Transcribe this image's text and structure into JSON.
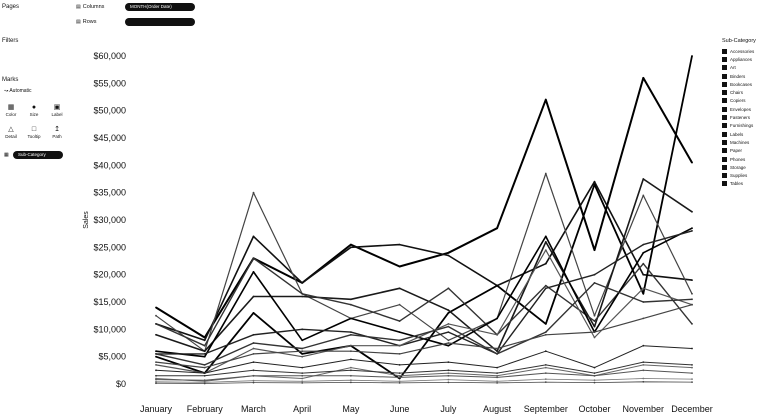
{
  "shelves": {
    "pages_label": "Pages",
    "filters_label": "Filters",
    "columns_label": "Columns",
    "rows_label": "Rows",
    "columns_pill": "MONTH(Order Date)",
    "rows_pill": ""
  },
  "marks": {
    "title": "Marks",
    "mark_type": "Automatic",
    "buttons": [
      {
        "label": "Color",
        "icon": "color-icon"
      },
      {
        "label": "Size",
        "icon": "size-icon"
      },
      {
        "label": "Label",
        "icon": "label-icon"
      },
      {
        "label": "Detail",
        "icon": "detail-icon"
      },
      {
        "label": "Tooltip",
        "icon": "tooltip-icon"
      },
      {
        "label": "Path",
        "icon": "path-icon"
      }
    ],
    "color_pill": "Sub-Category"
  },
  "legend": {
    "title": "Sub-Category",
    "items": [
      "Accessories",
      "Appliances",
      "Art",
      "Binders",
      "Bookcases",
      "Chairs",
      "Copiers",
      "Envelopes",
      "Fasteners",
      "Furnishings",
      "Labels",
      "Machines",
      "Paper",
      "Phones",
      "Storage",
      "Supplies",
      "Tables"
    ]
  },
  "chart_data": {
    "type": "line",
    "categories": [
      "January",
      "February",
      "March",
      "April",
      "May",
      "June",
      "July",
      "August",
      "September",
      "October",
      "November",
      "December"
    ],
    "ylabel": "Sales",
    "ylim": [
      0,
      60000
    ],
    "yticks": [
      "$0",
      "$5,000",
      "$10,000",
      "$15,000",
      "$20,000",
      "$25,000",
      "$30,000",
      "$35,000",
      "$40,000",
      "$45,000",
      "$50,000",
      "$55,000",
      "$60,000"
    ],
    "grid": false,
    "legend_position": "right",
    "series": [
      {
        "name": "Phones",
        "values": [
          14000,
          8500,
          23000,
          18500,
          25500,
          21500,
          24000,
          28500,
          52000,
          24500,
          56000,
          40500
        ]
      },
      {
        "name": "Chairs",
        "values": [
          11000,
          8000,
          27000,
          18500,
          25000,
          25500,
          23500,
          18000,
          22000,
          37000,
          20000,
          19000
        ]
      },
      {
        "name": "Copiers",
        "values": [
          5000,
          2000,
          13000,
          5500,
          7000,
          1000,
          13000,
          18000,
          11000,
          36500,
          16500,
          60000
        ]
      },
      {
        "name": "Storage",
        "values": [
          12500,
          6000,
          35000,
          16500,
          12000,
          14500,
          8000,
          12000,
          38500,
          12500,
          34500,
          16500
        ]
      },
      {
        "name": "Tables",
        "values": [
          9000,
          6000,
          16000,
          16000,
          15500,
          17500,
          13500,
          6000,
          26000,
          10500,
          37500,
          31500
        ]
      },
      {
        "name": "Machines",
        "values": [
          11000,
          7000,
          23000,
          16500,
          14500,
          11500,
          17500,
          9000,
          18000,
          11500,
          22000,
          11000
        ]
      },
      {
        "name": "Binders",
        "values": [
          6000,
          5000,
          20500,
          8000,
          12000,
          9500,
          7000,
          12000,
          27000,
          9500,
          24000,
          28500
        ]
      },
      {
        "name": "Bookcases",
        "values": [
          5500,
          5500,
          9000,
          10000,
          9500,
          7000,
          9500,
          5500,
          17500,
          20000,
          25500,
          28000
        ]
      },
      {
        "name": "Appliances",
        "values": [
          3500,
          2000,
          6500,
          5000,
          7000,
          7000,
          11000,
          9000,
          24500,
          8500,
          17500,
          14500
        ]
      },
      {
        "name": "Accessories",
        "values": [
          5500,
          3500,
          7500,
          6500,
          9000,
          8000,
          10500,
          5500,
          9500,
          18500,
          15000,
          15500
        ]
      },
      {
        "name": "Furnishings",
        "values": [
          4000,
          3000,
          5500,
          6000,
          6000,
          5500,
          7500,
          6500,
          9000,
          9500,
          12000,
          14500
        ]
      },
      {
        "name": "Paper",
        "values": [
          2500,
          2000,
          4000,
          3000,
          4500,
          3500,
          4000,
          3000,
          6000,
          3000,
          7000,
          6500
        ]
      },
      {
        "name": "Supplies",
        "values": [
          1000,
          500,
          1500,
          1000,
          3000,
          1500,
          2000,
          1500,
          3000,
          1500,
          3500,
          3000
        ]
      },
      {
        "name": "Art",
        "values": [
          1500,
          1500,
          2500,
          2000,
          2500,
          2000,
          2500,
          2000,
          3500,
          2000,
          4000,
          3500
        ]
      },
      {
        "name": "Envelopes",
        "values": [
          800,
          700,
          1500,
          1500,
          1500,
          1200,
          1500,
          1200,
          2000,
          1500,
          2500,
          2000
        ]
      },
      {
        "name": "Labels",
        "values": [
          400,
          300,
          600,
          500,
          700,
          500,
          800,
          500,
          900,
          700,
          1000,
          900
        ]
      },
      {
        "name": "Fasteners",
        "values": [
          150,
          100,
          250,
          200,
          300,
          200,
          300,
          200,
          350,
          250,
          400,
          350
        ]
      }
    ]
  }
}
